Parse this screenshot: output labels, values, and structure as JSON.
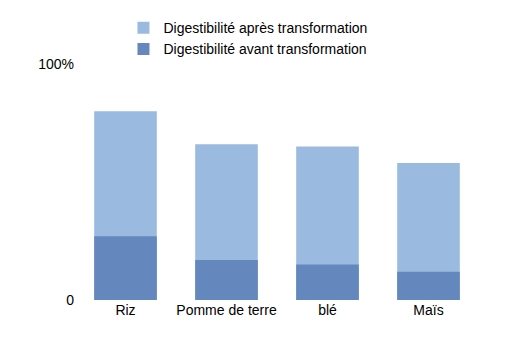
{
  "chart_data": {
    "type": "bar",
    "categories": [
      "Riz",
      "Pomme de terre",
      "blé",
      "Maïs"
    ],
    "series": [
      {
        "name": "Digestibilité après transformation",
        "color": "#9bbadf",
        "values": [
          80,
          66,
          65,
          58
        ]
      },
      {
        "name": "Digestibilité avant transformation",
        "color": "#6488bd",
        "values": [
          27,
          17,
          15,
          12
        ]
      }
    ],
    "stacked": false,
    "ylim": [
      0,
      100
    ],
    "yticks": [
      0,
      {
        "value": 100,
        "label": "100%"
      }
    ],
    "grid": true,
    "legend": "top"
  }
}
